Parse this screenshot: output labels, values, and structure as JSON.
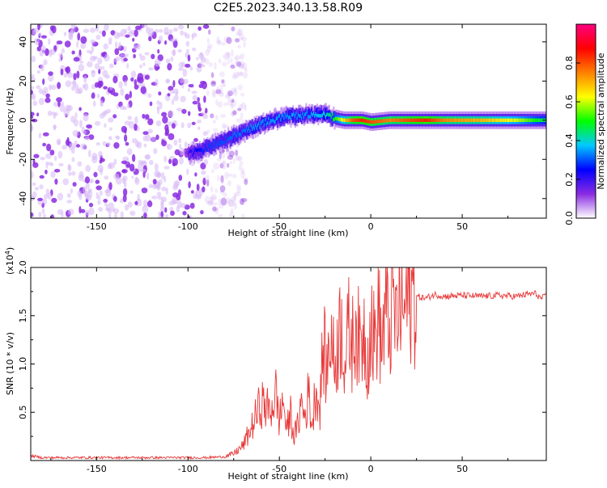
{
  "title": "C2E5.2023.340.13.58.R09",
  "colors": {
    "snr_line": "#e83a3a",
    "frame": "#000000"
  },
  "chart_data": [
    {
      "type": "heatmap",
      "name": "spectrogram",
      "xlabel": "Height of straight line (km)",
      "ylabel": "Frequency (Hz)",
      "xlim": [
        -186,
        96
      ],
      "ylim": [
        -50,
        49
      ],
      "x_ticks": [
        -150,
        -100,
        -50,
        0,
        50
      ],
      "x_tick_labels": [
        "-150",
        "-100",
        "-50",
        "0",
        "50"
      ],
      "y_ticks": [
        -40,
        -20,
        0,
        20,
        40
      ],
      "y_tick_labels": [
        "-40",
        "-20",
        "0",
        "20",
        "40"
      ],
      "colorbar": {
        "label": "Normalized spectral amplitude",
        "range": [
          0.0,
          1.0
        ],
        "ticks": [
          0.0,
          0.2,
          0.4,
          0.6,
          0.8
        ],
        "tick_labels": [
          "0.0",
          "0.2",
          "0.4",
          "0.6",
          "0.8"
        ],
        "colors": [
          "#ffffff",
          "#8a2be2",
          "#0000ff",
          "#00c8ff",
          "#00ff00",
          "#ffff00",
          "#ff8000",
          "#ff0000",
          "#ff0080"
        ]
      },
      "noise_region": {
        "x_range": [
          -186,
          -80
        ],
        "amplitude": 0.1
      },
      "ridge": {
        "x": [
          -100,
          -95,
          -90,
          -85,
          -80,
          -75,
          -70,
          -65,
          -60,
          -55,
          -50,
          -45,
          -40,
          -35,
          -30,
          -25,
          -20,
          -15,
          -10,
          -5,
          0,
          10,
          20,
          30,
          40,
          50,
          60,
          70,
          80,
          90,
          96
        ],
        "freq": [
          -17,
          -16,
          -14,
          -12,
          -10,
          -8,
          -6,
          -4,
          -2,
          0,
          1,
          2,
          2,
          3,
          3,
          3,
          1,
          0,
          0,
          0,
          -1,
          0,
          0,
          0,
          0,
          0,
          0,
          0,
          0,
          0,
          0
        ],
        "amplitude": [
          0.2,
          0.25,
          0.28,
          0.3,
          0.3,
          0.32,
          0.32,
          0.35,
          0.35,
          0.35,
          0.35,
          0.35,
          0.35,
          0.35,
          0.38,
          0.4,
          0.5,
          0.65,
          0.8,
          0.85,
          0.8,
          0.75,
          0.8,
          0.85,
          0.75,
          0.72,
          0.7,
          0.65,
          0.6,
          0.5,
          0.45
        ]
      }
    },
    {
      "type": "line",
      "name": "snr",
      "xlabel": "Height of straight line (km)",
      "ylabel": "SNR (10 * v/v)",
      "y_multiplier_label": "(x10",
      "y_multiplier_exp": "4",
      "y_multiplier_close": ")",
      "xlim": [
        -186,
        96
      ],
      "ylim": [
        0,
        20000
      ],
      "x_ticks": [
        -150,
        -100,
        -50,
        0,
        50
      ],
      "x_tick_labels": [
        "-150",
        "-100",
        "-50",
        "0",
        "50"
      ],
      "y_ticks": [
        5000,
        10000,
        15000,
        20000
      ],
      "y_tick_labels": [
        "0.5",
        "1.0",
        "1.5",
        "2.0"
      ],
      "series": [
        {
          "name": "SNR",
          "x": [
            -186,
            -180,
            -170,
            -160,
            -150,
            -140,
            -130,
            -120,
            -110,
            -100,
            -90,
            -80,
            -75,
            -70,
            -65,
            -60,
            -55,
            -52,
            -50,
            -48,
            -46,
            -44,
            -42,
            -40,
            -38,
            -36,
            -34,
            -32,
            -30,
            -28,
            -26,
            -24,
            -22,
            -20,
            -18,
            -16,
            -14,
            -12,
            -10,
            -8,
            -6,
            -4,
            -2,
            0,
            2,
            4,
            6,
            8,
            10,
            12,
            14,
            16,
            18,
            20,
            25,
            30,
            35,
            40,
            50,
            60,
            70,
            80,
            85,
            90,
            93,
            96
          ],
          "y": [
            500,
            300,
            300,
            300,
            300,
            300,
            300,
            300,
            300,
            300,
            300,
            400,
            700,
            1500,
            3500,
            6000,
            5000,
            7000,
            4000,
            6500,
            3000,
            5000,
            2500,
            3500,
            6000,
            4500,
            7000,
            3500,
            8000,
            5000,
            12000,
            9000,
            14000,
            9500,
            12500,
            14500,
            10000,
            13500,
            12000,
            15000,
            11000,
            14000,
            10500,
            14500,
            12000,
            15500,
            11500,
            16000,
            13000,
            16500,
            14000,
            16500,
            15000,
            17000,
            17000,
            16800,
            17200,
            17000,
            17100,
            17000,
            17100,
            17000,
            17200,
            17300,
            16800,
            17000
          ]
        }
      ]
    }
  ]
}
